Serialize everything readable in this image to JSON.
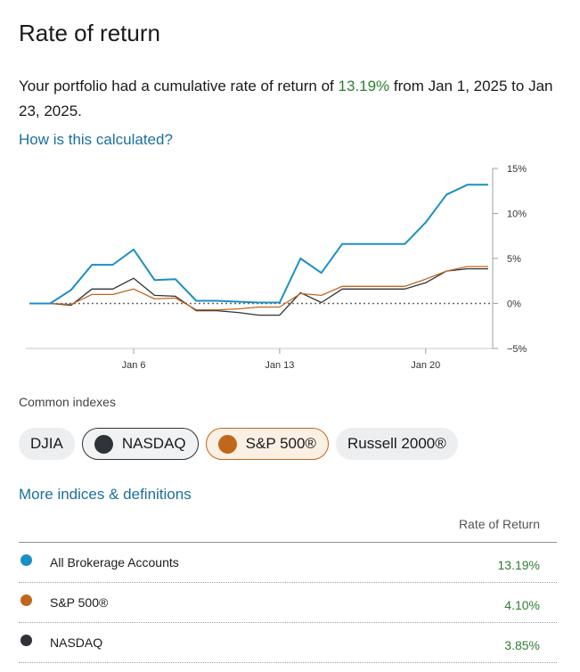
{
  "header": {
    "title": "Rate of return"
  },
  "summary": {
    "prefix": "Your portfolio had a cumulative rate of return of ",
    "percent": "13.19%",
    "suffix": " from Jan 1, 2025 to Jan 23, 2025."
  },
  "links": {
    "calculated": "How is this calculated?",
    "more": "More indices & definitions"
  },
  "chart_data": {
    "type": "line",
    "xlabel": "",
    "ylabel": "",
    "x_tick_labels": [
      "Jan 6",
      "Jan 13",
      "Jan 20"
    ],
    "y_tick_labels": [
      "15%",
      "10%",
      "5%",
      "0%",
      "−5%"
    ],
    "ylim": [
      -5,
      15
    ],
    "grid": false,
    "zero_line": "dotted",
    "x": [
      "Jan 1",
      "Jan 2",
      "Jan 3",
      "Jan 4",
      "Jan 5",
      "Jan 6",
      "Jan 7",
      "Jan 8",
      "Jan 9",
      "Jan 10",
      "Jan 11",
      "Jan 12",
      "Jan 13",
      "Jan 14",
      "Jan 15",
      "Jan 16",
      "Jan 17",
      "Jan 18",
      "Jan 19",
      "Jan 20",
      "Jan 21",
      "Jan 22",
      "Jan 23"
    ],
    "series": [
      {
        "name": "All Brokerage Accounts",
        "color": "#1a8fc5",
        "values": [
          0,
          0,
          1.5,
          4.3,
          4.3,
          6.0,
          2.6,
          2.7,
          0.3,
          0.3,
          0.2,
          0.1,
          0.1,
          5.0,
          3.4,
          6.6,
          6.6,
          6.6,
          6.6,
          9.0,
          12.1,
          13.19,
          13.19
        ]
      },
      {
        "name": "S&P 500®",
        "color": "#c0671c",
        "values": [
          0,
          0,
          -0.1,
          1.0,
          1.0,
          1.6,
          0.5,
          0.6,
          -0.7,
          -0.7,
          -0.6,
          -0.4,
          -0.4,
          1.1,
          0.9,
          1.9,
          1.9,
          1.9,
          1.9,
          2.7,
          3.6,
          4.1,
          4.1
        ]
      },
      {
        "name": "NASDAQ",
        "color": "#2f3337",
        "values": [
          0,
          0,
          -0.2,
          1.6,
          1.6,
          2.8,
          0.9,
          0.8,
          -0.8,
          -0.8,
          -1.0,
          -1.3,
          -1.3,
          1.2,
          0.1,
          1.6,
          1.6,
          1.6,
          1.6,
          2.3,
          3.6,
          3.85,
          3.85
        ]
      }
    ]
  },
  "indexes": {
    "label": "Common indexes",
    "chips": [
      {
        "label": "DJIA"
      },
      {
        "label": "NASDAQ",
        "color": "#2f3337"
      },
      {
        "label": "S&P 500®",
        "color": "#c0671c"
      },
      {
        "label": "Russell 2000®"
      }
    ]
  },
  "table": {
    "header": "Rate of Return",
    "rows": [
      {
        "name": "All Brokerage Accounts",
        "value": "13.19%",
        "color": "#1a8fc5"
      },
      {
        "name": "S&P 500®",
        "value": "4.10%",
        "color": "#c0671c"
      },
      {
        "name": "NASDAQ",
        "value": "3.85%",
        "color": "#2f3337"
      }
    ]
  }
}
